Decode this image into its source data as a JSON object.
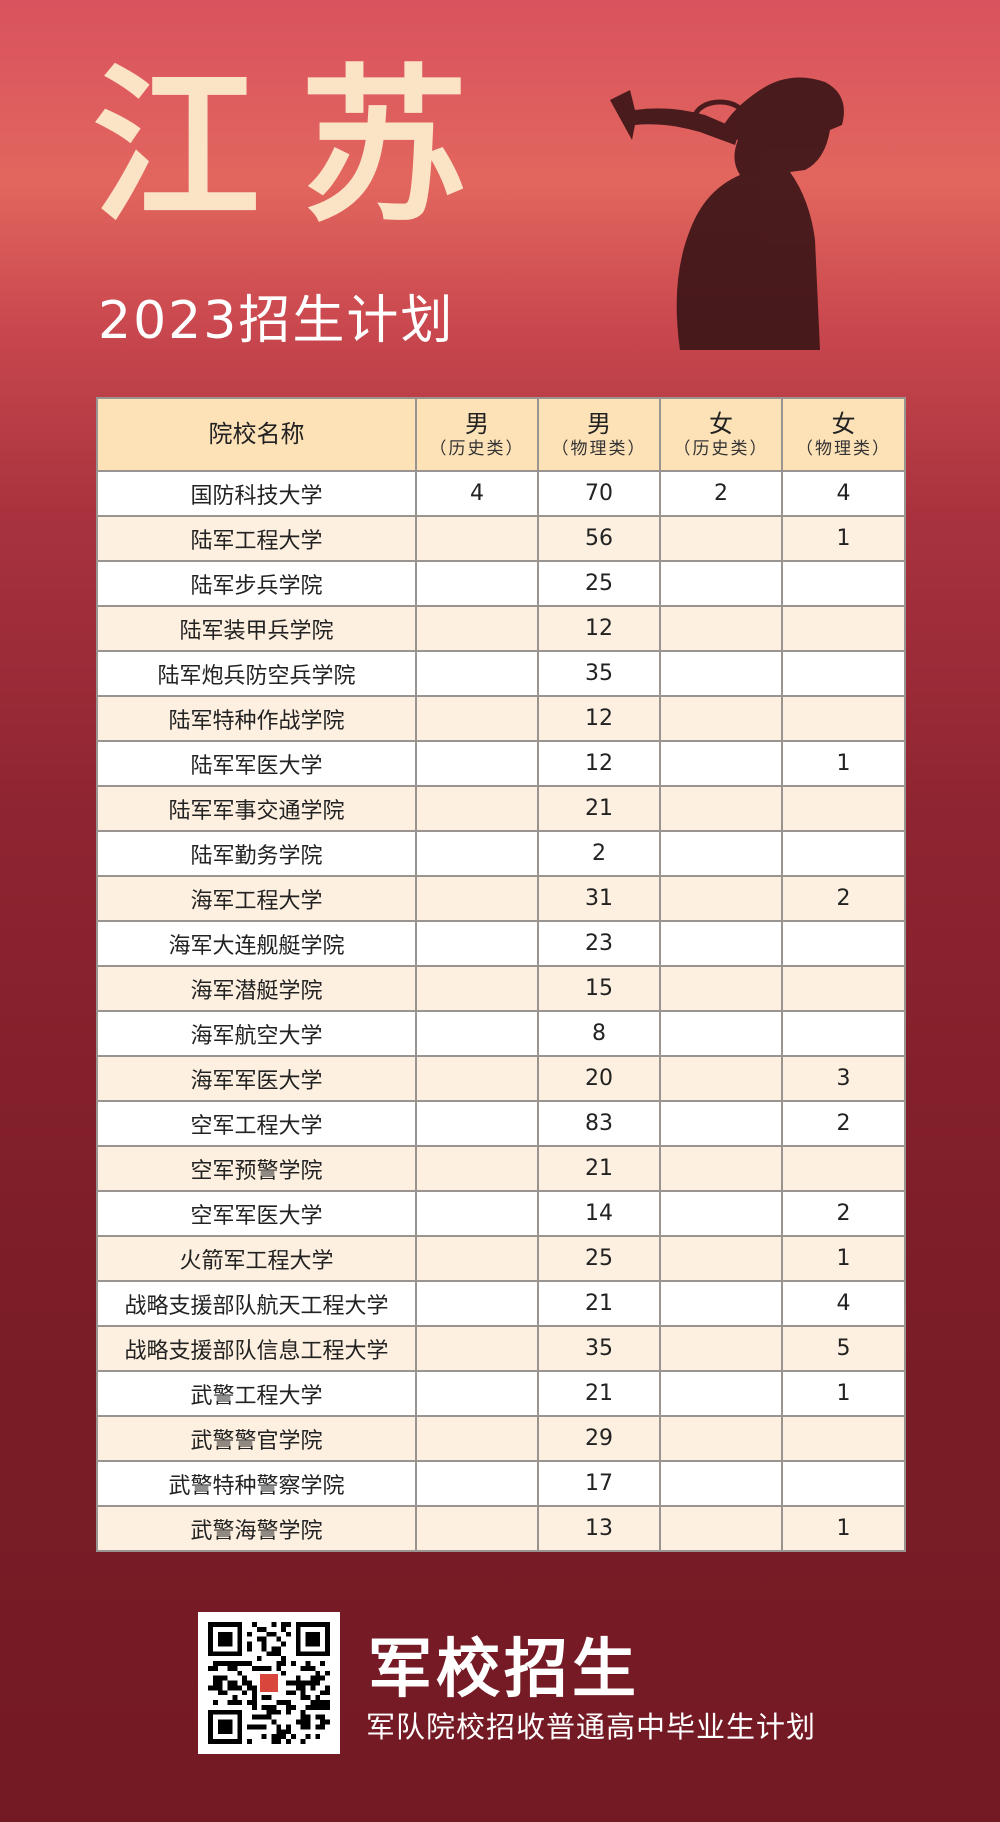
{
  "header": {
    "title": "江苏",
    "subtitle": "2023招生计划"
  },
  "table": {
    "headers": [
      {
        "main": "院校名称",
        "sub": ""
      },
      {
        "main": "男",
        "sub": "（历史类）"
      },
      {
        "main": "男",
        "sub": "（物理类）"
      },
      {
        "main": "女",
        "sub": "（历史类）"
      },
      {
        "main": "女",
        "sub": "（物理类）"
      }
    ],
    "rows": [
      [
        "国防科技大学",
        "4",
        "70",
        "2",
        "4"
      ],
      [
        "陆军工程大学",
        "",
        "56",
        "",
        "1"
      ],
      [
        "陆军步兵学院",
        "",
        "25",
        "",
        ""
      ],
      [
        "陆军装甲兵学院",
        "",
        "12",
        "",
        ""
      ],
      [
        "陆军炮兵防空兵学院",
        "",
        "35",
        "",
        ""
      ],
      [
        "陆军特种作战学院",
        "",
        "12",
        "",
        ""
      ],
      [
        "陆军军医大学",
        "",
        "12",
        "",
        "1"
      ],
      [
        "陆军军事交通学院",
        "",
        "21",
        "",
        ""
      ],
      [
        "陆军勤务学院",
        "",
        "2",
        "",
        ""
      ],
      [
        "海军工程大学",
        "",
        "31",
        "",
        "2"
      ],
      [
        "海军大连舰艇学院",
        "",
        "23",
        "",
        ""
      ],
      [
        "海军潜艇学院",
        "",
        "15",
        "",
        ""
      ],
      [
        "海军航空大学",
        "",
        "8",
        "",
        ""
      ],
      [
        "海军军医大学",
        "",
        "20",
        "",
        "3"
      ],
      [
        "空军工程大学",
        "",
        "83",
        "",
        "2"
      ],
      [
        "空军预警学院",
        "",
        "21",
        "",
        ""
      ],
      [
        "空军军医大学",
        "",
        "14",
        "",
        "2"
      ],
      [
        "火箭军工程大学",
        "",
        "25",
        "",
        "1"
      ],
      [
        "战略支援部队航天工程大学",
        "",
        "21",
        "",
        "4"
      ],
      [
        "战略支援部队信息工程大学",
        "",
        "35",
        "",
        "5"
      ],
      [
        "武警工程大学",
        "",
        "21",
        "",
        "1"
      ],
      [
        "武警警官学院",
        "",
        "29",
        "",
        ""
      ],
      [
        "武警特种警察学院",
        "",
        "17",
        "",
        ""
      ],
      [
        "武警海警学院",
        "",
        "13",
        "",
        "1"
      ]
    ]
  },
  "footer": {
    "brand": "军校招生",
    "slogan": "军队院校招收普通高中毕业生计划",
    "qr_icon": "qr-code"
  }
}
